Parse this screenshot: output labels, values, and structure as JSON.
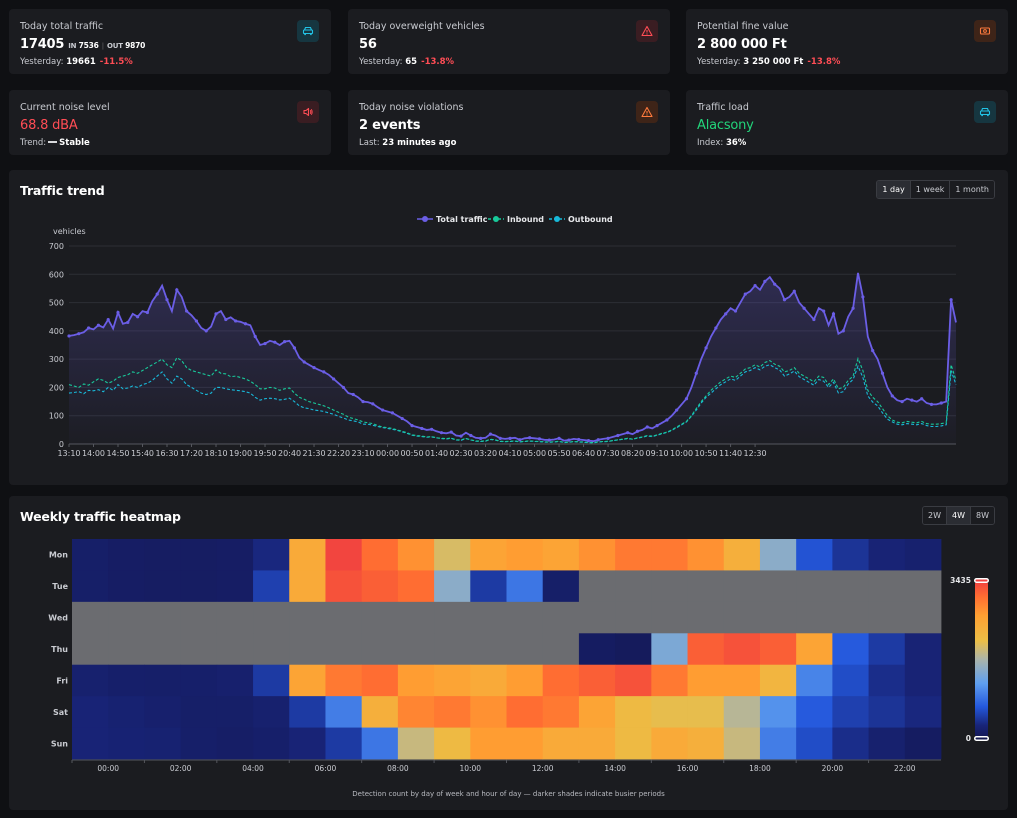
{
  "kpis": {
    "traffic": {
      "label": "Today total traffic",
      "value": "17405",
      "in_label": "IN",
      "in_value": "7536",
      "out_label": "OUT",
      "out_value": "9870",
      "yesterday_label": "Yesterday:",
      "yesterday_value": "19661",
      "change": "-11.5%",
      "icon": "car-icon",
      "accent": "#22c3e6"
    },
    "overweight": {
      "label": "Today overweight vehicles",
      "value": "56",
      "yesterday_label": "Yesterday:",
      "yesterday_value": "65",
      "change": "-13.8%",
      "icon": "warning-icon",
      "accent": "#ff4d55"
    },
    "fine": {
      "label": "Potential fine value",
      "value": "2 800 000 Ft",
      "yesterday_label": "Yesterday:",
      "yesterday_value": "3 250 000 Ft",
      "change": "-13.8%",
      "icon": "money-icon",
      "accent": "#ff7a3d"
    },
    "noise": {
      "label": "Current noise level",
      "value": "68.8 dBA",
      "trend_label": "Trend:",
      "trend_value": "Stable",
      "icon": "speaker-icon",
      "accent": "#ff4d55"
    },
    "violations": {
      "label": "Today noise violations",
      "value": "2 events",
      "last_label": "Last:",
      "last_value": "23 minutes ago",
      "icon": "warning-icon",
      "accent": "#ff7a3d"
    },
    "load": {
      "label": "Traffic load",
      "value": "Alacsony",
      "index_label": "Index:",
      "index_value": "36%",
      "icon": "car-icon",
      "accent": "#22c3e6"
    }
  },
  "trend": {
    "title": "Traffic trend",
    "ranges": [
      "1 day",
      "1 week",
      "1 month"
    ],
    "active_range": "1 day"
  },
  "heatmap": {
    "title": "Weekly traffic heatmap",
    "ranges": [
      "2W",
      "4W",
      "8W"
    ],
    "active_range": "4W",
    "footnote": "Detection count by day of week and hour of day — darker shades indicate busier periods"
  },
  "chart_data": [
    {
      "type": "line",
      "ylabel": "vehicles",
      "ylim": [
        0,
        700
      ],
      "yticks": [
        0,
        100,
        200,
        300,
        400,
        500,
        600,
        700
      ],
      "grid": true,
      "legend_position": "top-center",
      "x_tick_labels": [
        "13:10",
        "14:00",
        "14:50",
        "15:40",
        "16:30",
        "17:20",
        "18:10",
        "19:00",
        "19:50",
        "20:40",
        "21:30",
        "22:20",
        "23:10",
        "00:00",
        "00:50",
        "01:40",
        "02:30",
        "03:20",
        "04:10",
        "05:00",
        "05:50",
        "06:40",
        "07:30",
        "08:20",
        "09:10",
        "10:00",
        "10:50",
        "11:40",
        "12:30"
      ],
      "x_tick_index": [
        0,
        5,
        10,
        15,
        20,
        25,
        30,
        35,
        40,
        45,
        50,
        55,
        60,
        65,
        70,
        75,
        80,
        85,
        90,
        95,
        100,
        105,
        110,
        115,
        120,
        125,
        130,
        135,
        140
      ],
      "series": [
        {
          "name": "Total traffic",
          "color": "#6b5ee6",
          "style": "solid",
          "values": [
            382,
            385,
            390,
            395,
            410,
            405,
            420,
            412,
            440,
            408,
            465,
            425,
            430,
            460,
            450,
            470,
            465,
            505,
            530,
            560,
            510,
            470,
            545,
            520,
            470,
            455,
            435,
            410,
            400,
            415,
            460,
            470,
            440,
            448,
            435,
            432,
            425,
            420,
            380,
            350,
            355,
            365,
            360,
            350,
            362,
            365,
            340,
            305,
            290,
            280,
            270,
            262,
            255,
            245,
            230,
            215,
            200,
            180,
            175,
            165,
            150,
            148,
            142,
            130,
            120,
            115,
            110,
            100,
            90,
            80,
            65,
            60,
            55,
            50,
            52,
            45,
            40,
            38,
            42,
            30,
            28,
            40,
            30,
            22,
            20,
            22,
            35,
            30,
            20,
            18,
            20,
            22,
            15,
            20,
            22,
            20,
            18,
            15,
            14,
            16,
            20,
            12,
            14,
            18,
            16,
            14,
            12,
            10,
            15,
            18,
            20,
            25,
            30,
            35,
            40,
            35,
            45,
            50,
            60,
            55,
            65,
            75,
            85,
            100,
            120,
            140,
            160,
            200,
            250,
            300,
            340,
            380,
            410,
            440,
            460,
            480,
            470,
            500,
            530,
            540,
            560,
            545,
            575,
            590,
            565,
            550,
            510,
            520,
            540,
            500,
            480,
            460,
            440,
            480,
            470,
            420,
            460,
            390,
            400,
            450,
            480,
            605,
            520,
            380,
            330,
            300,
            250,
            200,
            170,
            155,
            150,
            160,
            155,
            150,
            160,
            145,
            140,
            140,
            145,
            150,
            510,
            430
          ]
        },
        {
          "name": "Inbound",
          "color": "#18c99a",
          "style": "dashed",
          "values": [
            210,
            205,
            200,
            212,
            208,
            220,
            230,
            225,
            215,
            222,
            235,
            240,
            245,
            255,
            250,
            260,
            270,
            280,
            290,
            300,
            280,
            270,
            305,
            295,
            270,
            260,
            255,
            250,
            245,
            240,
            262,
            250,
            248,
            238,
            240,
            235,
            230,
            222,
            210,
            195,
            195,
            200,
            198,
            190,
            195,
            198,
            180,
            165,
            158,
            150,
            145,
            140,
            135,
            128,
            120,
            112,
            105,
            95,
            90,
            85,
            78,
            75,
            72,
            65,
            60,
            58,
            55,
            50,
            45,
            40,
            32,
            30,
            28,
            25,
            26,
            22,
            20,
            19,
            21,
            15,
            14,
            20,
            15,
            11,
            10,
            11,
            17,
            15,
            10,
            9,
            10,
            11,
            8,
            10,
            11,
            10,
            9,
            8,
            7,
            8,
            10,
            6,
            7,
            9,
            8,
            7,
            6,
            5,
            8,
            9,
            10,
            12,
            15,
            17,
            20,
            17,
            22,
            25,
            30,
            28,
            32,
            38,
            42,
            50,
            60,
            70,
            80,
            100,
            125,
            150,
            170,
            190,
            205,
            220,
            230,
            240,
            235,
            250,
            265,
            270,
            280,
            272,
            288,
            295,
            282,
            275,
            255,
            260,
            270,
            250,
            240,
            230,
            220,
            240,
            235,
            210,
            230,
            195,
            200,
            225,
            240,
            302,
            260,
            190,
            165,
            150,
            125,
            100,
            85,
            77,
            75,
            80,
            77,
            75,
            80,
            72,
            70,
            70,
            72,
            75,
            280,
            225
          ]
        },
        {
          "name": "Outbound",
          "color": "#18b9d9",
          "style": "dashed",
          "values": [
            180,
            182,
            185,
            178,
            190,
            188,
            192,
            185,
            200,
            190,
            210,
            195,
            198,
            205,
            200,
            210,
            215,
            225,
            240,
            255,
            230,
            215,
            240,
            230,
            210,
            200,
            190,
            180,
            175,
            180,
            200,
            200,
            195,
            192,
            190,
            188,
            185,
            180,
            165,
            155,
            160,
            162,
            160,
            156,
            158,
            162,
            150,
            135,
            128,
            125,
            120,
            118,
            115,
            110,
            105,
            98,
            92,
            85,
            82,
            78,
            70,
            70,
            66,
            62,
            58,
            55,
            52,
            48,
            43,
            38,
            31,
            28,
            26,
            24,
            25,
            22,
            19,
            18,
            20,
            14,
            13,
            19,
            14,
            10,
            9,
            10,
            16,
            14,
            9,
            8,
            9,
            10,
            7,
            9,
            10,
            9,
            8,
            7,
            6,
            7,
            9,
            5,
            6,
            8,
            7,
            6,
            5,
            4,
            7,
            8,
            9,
            12,
            14,
            17,
            19,
            17,
            21,
            24,
            28,
            26,
            31,
            36,
            41,
            48,
            58,
            68,
            78,
            98,
            120,
            145,
            165,
            180,
            195,
            210,
            220,
            230,
            225,
            240,
            255,
            260,
            270,
            262,
            275,
            280,
            270,
            262,
            240,
            248,
            258,
            238,
            228,
            218,
            208,
            228,
            222,
            200,
            218,
            180,
            185,
            212,
            228,
            275,
            235,
            170,
            148,
            135,
            110,
            88,
            78,
            70,
            68,
            72,
            70,
            68,
            72,
            65,
            62,
            62,
            64,
            68,
            260,
            210
          ]
        }
      ]
    },
    {
      "type": "heatmap",
      "rows": [
        "Mon",
        "Tue",
        "Wed",
        "Thu",
        "Fri",
        "Sat",
        "Sun"
      ],
      "columns": [
        "00:00",
        "01:00",
        "02:00",
        "03:00",
        "04:00",
        "05:00",
        "06:00",
        "07:00",
        "08:00",
        "09:00",
        "10:00",
        "11:00",
        "12:00",
        "13:00",
        "14:00",
        "15:00",
        "16:00",
        "17:00",
        "18:00",
        "19:00",
        "20:00",
        "21:00",
        "22:00",
        "23:00"
      ],
      "x_tick_labels": [
        "00:00",
        "02:00",
        "04:00",
        "06:00",
        "08:00",
        "10:00",
        "12:00",
        "14:00",
        "16:00",
        "18:00",
        "20:00",
        "22:00"
      ],
      "color_range": [
        0,
        3435
      ],
      "legend_max_label": "3435",
      "legend_min_label": "0",
      "no_data_color": "#6b6c70",
      "values": [
        [
          150,
          120,
          110,
          105,
          120,
          300,
          2500,
          3400,
          3100,
          2800,
          2000,
          2600,
          2700,
          2600,
          2800,
          3000,
          3000,
          2800,
          2400,
          1500,
          650,
          400,
          250,
          200
        ],
        [
          150,
          120,
          110,
          105,
          120,
          500,
          2500,
          3300,
          3200,
          3100,
          1500,
          450,
          900,
          150,
          null,
          null,
          null,
          null,
          null,
          null,
          null,
          null,
          null,
          null
        ],
        [
          null,
          null,
          null,
          null,
          null,
          null,
          null,
          null,
          null,
          null,
          null,
          null,
          null,
          null,
          null,
          null,
          null,
          null,
          null,
          null,
          null,
          null,
          null,
          null
        ],
        [
          null,
          null,
          null,
          null,
          null,
          null,
          null,
          null,
          null,
          null,
          null,
          null,
          null,
          null,
          100,
          60,
          1400,
          3200,
          3300,
          3200,
          2600,
          700,
          450,
          250
        ],
        [
          200,
          170,
          160,
          165,
          190,
          450,
          2600,
          3000,
          3100,
          2700,
          2600,
          2500,
          2700,
          3100,
          3200,
          3300,
          3000,
          2700,
          2700,
          2300,
          1000,
          600,
          350,
          250
        ],
        [
          260,
          220,
          190,
          150,
          150,
          200,
          450,
          950,
          2400,
          2900,
          3000,
          2800,
          3100,
          3000,
          2600,
          2200,
          2100,
          2100,
          1800,
          1100,
          700,
          500,
          400,
          300
        ],
        [
          260,
          240,
          220,
          160,
          140,
          170,
          260,
          450,
          900,
          1900,
          2200,
          2700,
          2700,
          2500,
          2500,
          2200,
          2500,
          2400,
          1900,
          950,
          600,
          350,
          200,
          100
        ]
      ]
    }
  ]
}
